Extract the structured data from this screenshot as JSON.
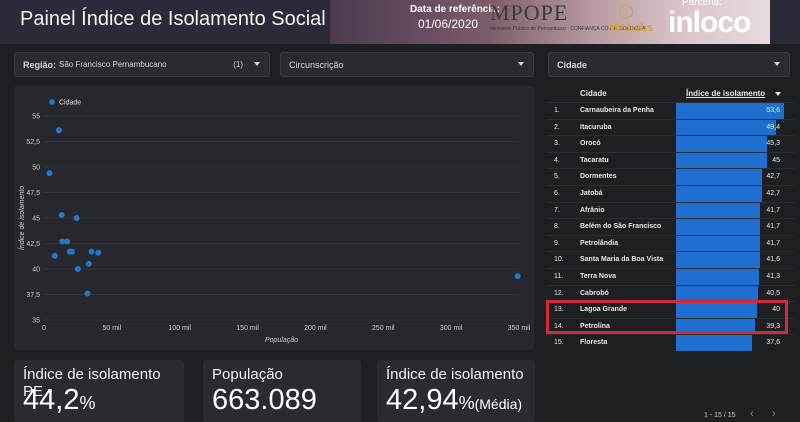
{
  "header": {
    "title": "Painel Índice de Isolamento Social",
    "ref_label": "Data de referência:",
    "ref_date": "01/06/2020",
    "logo_mppe": "MPOPE",
    "logo_mppe_sub": "Ministério Público de Pernambuco · CONFIANÇA COM A CIDADANIA",
    "logo_mplabs": "MP Labs",
    "parceria_label": "Parceria:",
    "partner_logo": "inloco"
  },
  "filters": {
    "regiao_label": "Região:",
    "regiao_value": "São Francisco Pernambucano",
    "regiao_count": "(1)",
    "circunscricao_label": "Circunscrição",
    "cidade_label": "Cidade"
  },
  "chart_data": {
    "type": "scatter",
    "legend": [
      "Cidade"
    ],
    "legend_position": "top-left",
    "xlabel": "População",
    "ylabel": "Índice de isolamento",
    "xlim": [
      0,
      350000
    ],
    "ylim": [
      35,
      55
    ],
    "x_ticks": [
      "0",
      "50 mil",
      "100 mil",
      "150 mil",
      "200 mil",
      "250 mil",
      "300 mil",
      "350 mil"
    ],
    "y_ticks": [
      "35",
      "37,5",
      "40",
      "42,5",
      "45",
      "47,5",
      "50",
      "52,5",
      "55"
    ],
    "grid": true,
    "color": "#1f77d2",
    "points": [
      {
        "x": 4000,
        "y": 49.4
      },
      {
        "x": 8000,
        "y": 41.3
      },
      {
        "x": 11000,
        "y": 53.6
      },
      {
        "x": 13000,
        "y": 45.3
      },
      {
        "x": 13500,
        "y": 42.7
      },
      {
        "x": 17000,
        "y": 42.7
      },
      {
        "x": 19000,
        "y": 41.7
      },
      {
        "x": 20500,
        "y": 41.7
      },
      {
        "x": 24000,
        "y": 45.0
      },
      {
        "x": 25000,
        "y": 40.0
      },
      {
        "x": 32000,
        "y": 37.6
      },
      {
        "x": 33000,
        "y": 40.5
      },
      {
        "x": 35000,
        "y": 41.7
      },
      {
        "x": 40000,
        "y": 41.6
      },
      {
        "x": 349000,
        "y": 39.3
      }
    ]
  },
  "table": {
    "col_city": "Cidade",
    "col_index": "Índice de isolamento",
    "rows": [
      {
        "n": "1.",
        "city": "Carnaubeira da Penha",
        "value": "53,6",
        "v": 53.6
      },
      {
        "n": "2.",
        "city": "Itacuruba",
        "value": "49,4",
        "v": 49.4
      },
      {
        "n": "3.",
        "city": "Orocó",
        "value": "45,3",
        "v": 45.3
      },
      {
        "n": "4.",
        "city": "Tacaratu",
        "value": "45",
        "v": 45
      },
      {
        "n": "5.",
        "city": "Dormentes",
        "value": "42,7",
        "v": 42.7
      },
      {
        "n": "6.",
        "city": "Jatobá",
        "value": "42,7",
        "v": 42.7
      },
      {
        "n": "7.",
        "city": "Afrânio",
        "value": "41,7",
        "v": 41.7
      },
      {
        "n": "8.",
        "city": "Belém do São Francisco",
        "value": "41,7",
        "v": 41.7
      },
      {
        "n": "9.",
        "city": "Petrolândia",
        "value": "41,7",
        "v": 41.7
      },
      {
        "n": "10.",
        "city": "Santa Maria da Boa Vista",
        "value": "41,6",
        "v": 41.6
      },
      {
        "n": "11.",
        "city": "Terra Nova",
        "value": "41,3",
        "v": 41.3
      },
      {
        "n": "12.",
        "city": "Cabrobó",
        "value": "40,5",
        "v": 40.5
      },
      {
        "n": "13.",
        "city": "Lagoa Grande",
        "value": "40",
        "v": 40
      },
      {
        "n": "14.",
        "city": "Petrolina",
        "value": "39,3",
        "v": 39.3
      },
      {
        "n": "15.",
        "city": "Floresta",
        "value": "37,6",
        "v": 37.6
      }
    ],
    "pager": "1 - 15 / 15",
    "bar_color": "#1f6fd0",
    "highlight_color": "#d6283b"
  },
  "kpis": {
    "pe_label": "Índice de isolamento PE",
    "pe_value": "44,2",
    "pe_unit": "%",
    "pop_label": "População",
    "pop_value": "663.089",
    "idx_label": "Índice de isolamento",
    "idx_value": "42,94",
    "idx_unit": "%",
    "idx_note": "(Média)"
  }
}
